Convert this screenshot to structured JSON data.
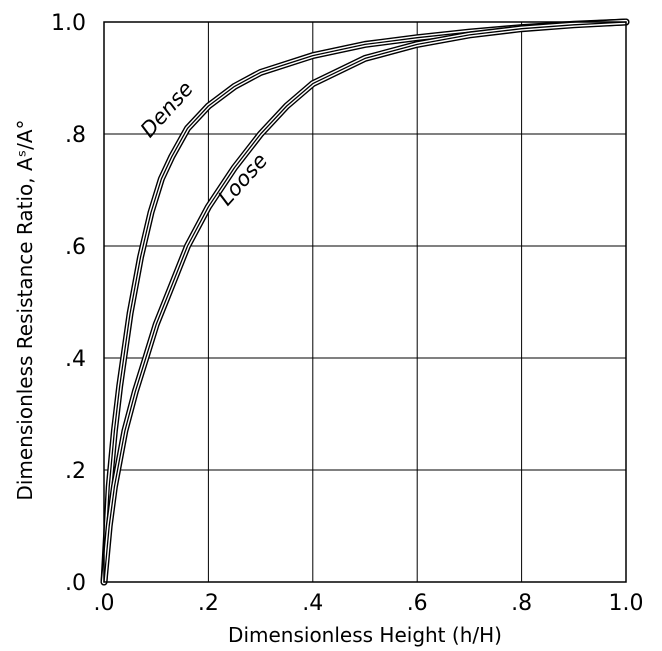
{
  "chart_data": {
    "type": "line",
    "title": "",
    "xlabel": "Dimensionless Height  (h/H)",
    "ylabel": "Dimensionless Resistance Ratio, Aˢ/A°",
    "xlim": [
      0,
      1
    ],
    "ylim": [
      0,
      1
    ],
    "x_ticks": [
      0,
      0.2,
      0.4,
      0.6,
      0.8,
      1.0
    ],
    "x_tick_labels": [
      ".0",
      ".2",
      ".4",
      ".6",
      ".8",
      "1.0"
    ],
    "y_ticks": [
      0,
      0.2,
      0.4,
      0.6,
      0.8,
      1.0
    ],
    "y_tick_labels": [
      ".0",
      ".2",
      ".4",
      ".6",
      ".8",
      "1.0"
    ],
    "grid": true,
    "series": [
      {
        "name": "Dense",
        "color": "#000000",
        "x": [
          0,
          0.01,
          0.02,
          0.03,
          0.05,
          0.07,
          0.09,
          0.11,
          0.13,
          0.16,
          0.2,
          0.25,
          0.3,
          0.4,
          0.5,
          0.6,
          0.7,
          0.8,
          0.9,
          1.0
        ],
        "y": [
          0,
          0.17,
          0.27,
          0.35,
          0.48,
          0.58,
          0.66,
          0.72,
          0.76,
          0.81,
          0.85,
          0.885,
          0.91,
          0.94,
          0.96,
          0.972,
          0.982,
          0.99,
          0.996,
          1.0
        ]
      },
      {
        "name": "Loose",
        "color": "#000000",
        "x": [
          0,
          0.01,
          0.02,
          0.04,
          0.06,
          0.08,
          0.1,
          0.13,
          0.16,
          0.2,
          0.25,
          0.3,
          0.35,
          0.4,
          0.5,
          0.6,
          0.7,
          0.8,
          0.9,
          1.0
        ],
        "y": [
          0,
          0.1,
          0.17,
          0.27,
          0.34,
          0.4,
          0.46,
          0.53,
          0.6,
          0.67,
          0.74,
          0.8,
          0.85,
          0.89,
          0.935,
          0.96,
          0.977,
          0.988,
          0.995,
          1.0
        ]
      }
    ],
    "curve_labels": [
      "Dense",
      "Loose"
    ]
  }
}
